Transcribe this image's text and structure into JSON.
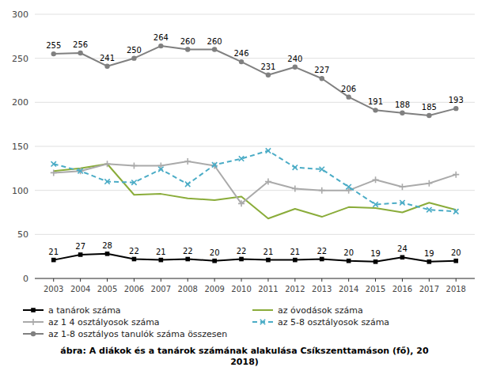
{
  "chart_data": {
    "type": "line",
    "title": "ábra: A diákok és a tanárok számának alakulása Csíkszenttamáson (fő), 20\n2018)",
    "x": [
      2003,
      2004,
      2005,
      2006,
      2007,
      2008,
      2009,
      2010,
      2011,
      2012,
      2013,
      2014,
      2015,
      2016,
      2017,
      2018
    ],
    "xlim": [
      2002.3,
      2018.7
    ],
    "xticks": [
      2003,
      2004,
      2005,
      2006,
      2007,
      2008,
      2009,
      2010,
      2011,
      2012,
      2013,
      2014,
      2015,
      2016,
      2017,
      2018
    ],
    "ylim": [
      0,
      300
    ],
    "yticks": [
      0,
      50,
      100,
      150,
      200,
      250,
      300
    ],
    "grid": true,
    "legend": "bottom",
    "series": [
      {
        "name": "a tanárok száma",
        "color": "#000000",
        "marker": "square",
        "line_style": "solid",
        "data_labels": true,
        "values": [
          21,
          27,
          28,
          22,
          21,
          22,
          20,
          22,
          21,
          21,
          22,
          20,
          19,
          24,
          19,
          20
        ]
      },
      {
        "name": "az óvodások száma",
        "color": "#8aac3a",
        "marker": "none",
        "line_style": "solid",
        "values": [
          122,
          125,
          130,
          95,
          96,
          91,
          89,
          93,
          68,
          79,
          70,
          81,
          80,
          75,
          86,
          78
        ]
      },
      {
        "name": "az 1 4 osztályosok száma",
        "color": "#aaaaaa",
        "marker": "plus",
        "line_style": "solid",
        "values": [
          120,
          122,
          130,
          128,
          128,
          133,
          128,
          85,
          110,
          102,
          100,
          100,
          112,
          104,
          108,
          118
        ]
      },
      {
        "name": "az 5-8 osztályosok száma",
        "color": "#4bacc6",
        "marker": "x",
        "line_style": "dashed",
        "values": [
          130,
          122,
          110,
          109,
          124,
          107,
          129,
          136,
          145,
          126,
          124,
          104,
          84,
          86,
          78,
          76
        ]
      },
      {
        "name": "az 1-8 osztályos tanulók száma összesen",
        "color": "#808080",
        "marker": "circle",
        "line_style": "solid",
        "data_labels": true,
        "values": [
          255,
          256,
          241,
          250,
          264,
          260,
          260,
          246,
          231,
          240,
          227,
          206,
          191,
          188,
          185,
          193
        ]
      }
    ]
  }
}
